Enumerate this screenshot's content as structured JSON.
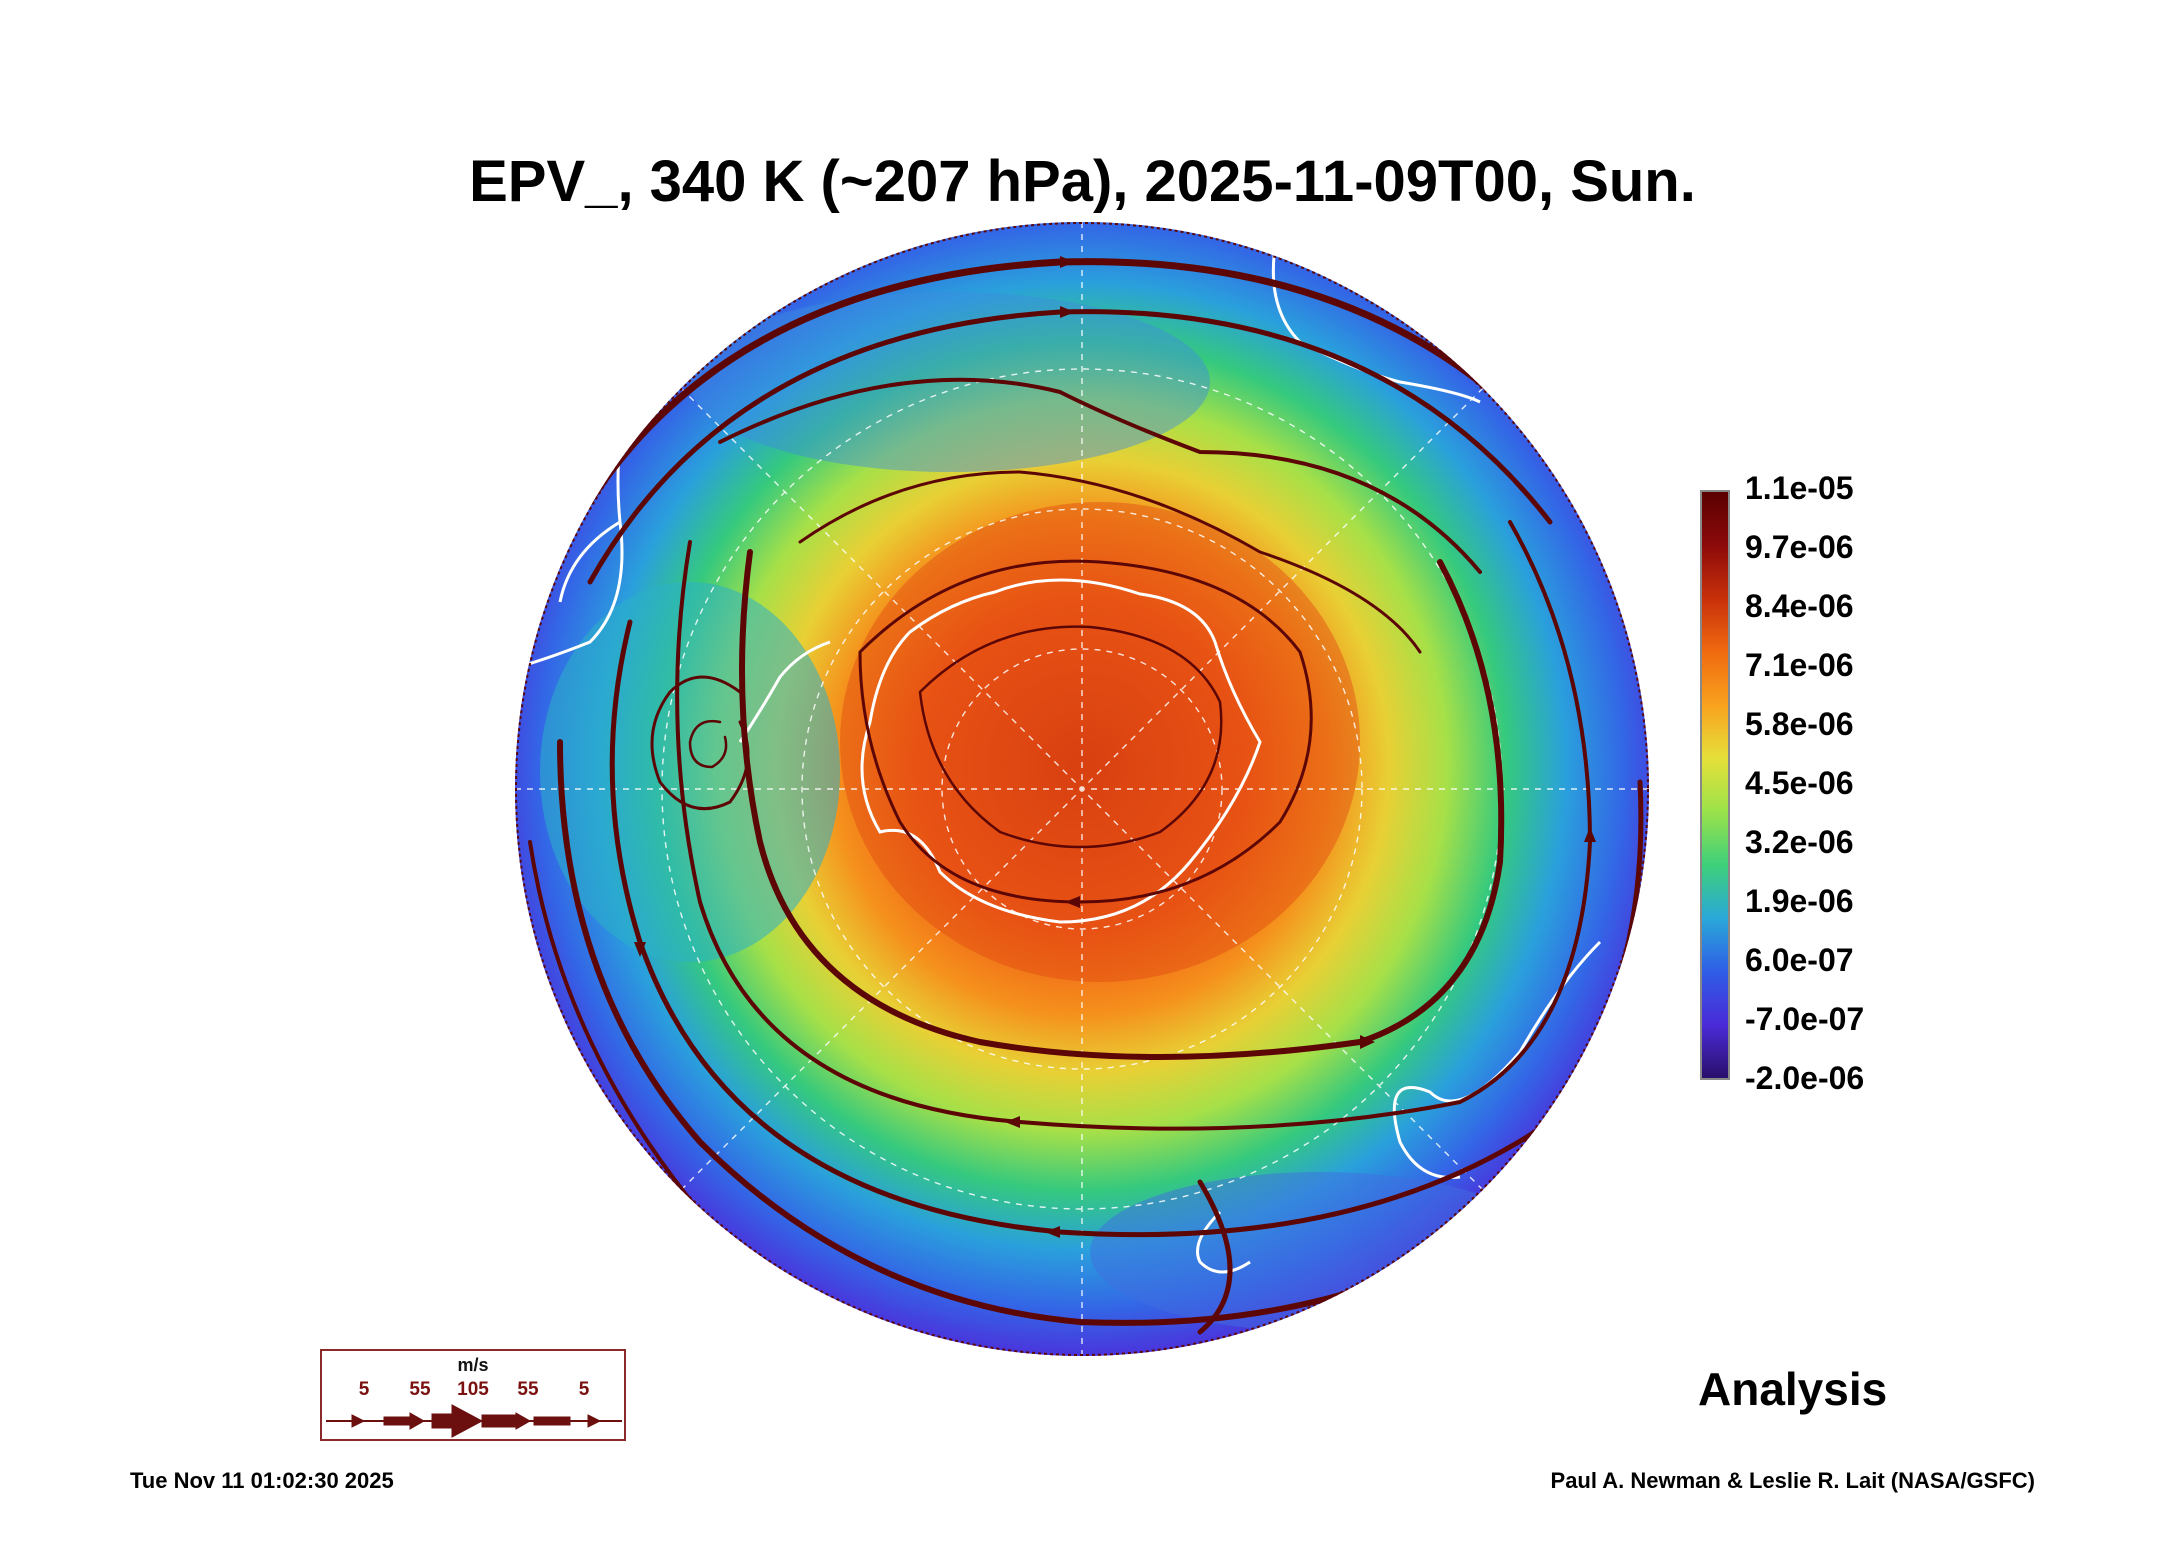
{
  "title": "EPV_, 340 K (~207 hPa), 2025-11-09T00, Sun.",
  "colorbar": {
    "labels": [
      "1.1e-05",
      "9.7e-06",
      "8.4e-06",
      "7.1e-06",
      "5.8e-06",
      "4.5e-06",
      "3.2e-06",
      "1.9e-06",
      "6.0e-07",
      "-7.0e-07",
      "-2.0e-06"
    ],
    "colors": [
      "#5a0000",
      "#8c0a0a",
      "#c8300a",
      "#f06a10",
      "#f9a21e",
      "#e6e03a",
      "#9be24a",
      "#3ed07a",
      "#2aa8d8",
      "#2f5ee6",
      "#4a2bd8",
      "#2a0f6b"
    ]
  },
  "wind_legend": {
    "unit": "m/s",
    "values": [
      "5",
      "55",
      "105",
      "55",
      "5"
    ],
    "color": "#6b0f0f"
  },
  "label": "Analysis",
  "timestamp": "Tue Nov 11 01:02:30 2025",
  "credit": "Paul A. Newman & Leslie R. Lait (NASA/GSFC)"
}
